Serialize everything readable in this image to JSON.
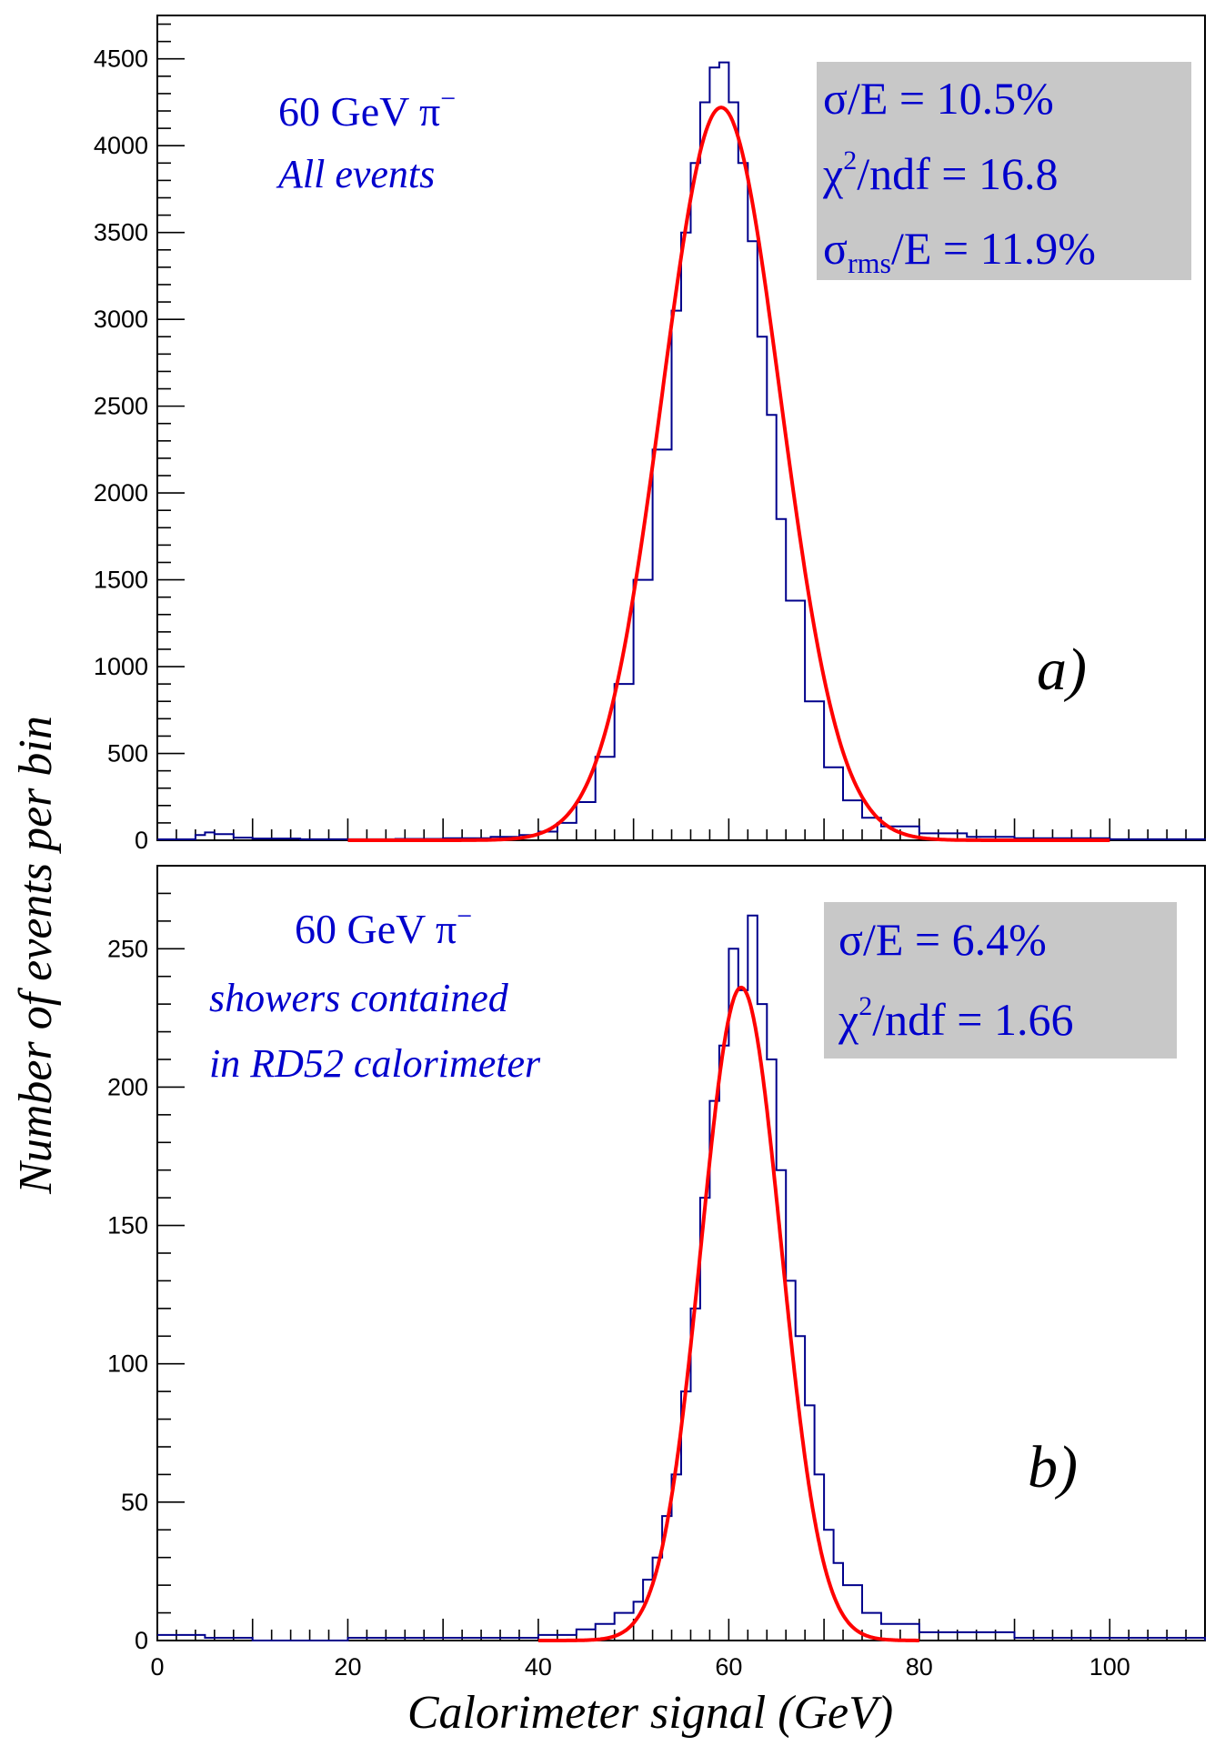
{
  "figure": {
    "ylabel": "Number of events per bin",
    "xlabel": "Calorimeter signal (GeV)"
  },
  "chart_data": [
    {
      "type": "histogram",
      "panel_label": "a)",
      "annotation": {
        "line1": "60 GeV π",
        "line1_sup": "−",
        "line2": "All events"
      },
      "stats": [
        {
          "text": "σ/E = 10.5%"
        },
        {
          "text_main": "χ",
          "text_sup": "2",
          "text_rest": "/ndf = 16.8"
        },
        {
          "text_main": "σ",
          "text_sub": "rms",
          "text_rest": "/E = 11.9%"
        }
      ],
      "stats_box_color": "#c8c8c8",
      "xlim": [
        0,
        110
      ],
      "ylim": [
        0,
        4750
      ],
      "yticks": [
        0,
        500,
        1000,
        1500,
        2000,
        2500,
        3000,
        3500,
        4000,
        4500
      ],
      "ytick_labels": [
        "0",
        "500",
        "1000",
        "1500",
        "2000",
        "2500",
        "3000",
        "3500",
        "4000",
        "4500"
      ],
      "series": [
        {
          "kind": "histogram",
          "color": "#00008b",
          "x": [
            0,
            4,
            5,
            6,
            8,
            10,
            15,
            20,
            25,
            30,
            35,
            38,
            40,
            42,
            44,
            46,
            48,
            50,
            52,
            54,
            55,
            56,
            57,
            58,
            59,
            60,
            61,
            62,
            63,
            64,
            65,
            66,
            68,
            70,
            72,
            74,
            76,
            80,
            85,
            90,
            100,
            110
          ],
          "y": [
            5,
            30,
            45,
            35,
            15,
            10,
            6,
            6,
            8,
            12,
            20,
            30,
            50,
            100,
            220,
            480,
            900,
            1500,
            2250,
            3050,
            3500,
            3900,
            4250,
            4450,
            4480,
            4250,
            3900,
            3450,
            2900,
            2450,
            1850,
            1380,
            800,
            420,
            230,
            130,
            80,
            40,
            20,
            12,
            6,
            4
          ]
        },
        {
          "kind": "fit",
          "color": "#ff0000",
          "mean": 59.2,
          "sigma": 6.22,
          "amplitude": 4220,
          "range": [
            20,
            100
          ]
        }
      ]
    },
    {
      "type": "histogram",
      "panel_label": "b)",
      "annotation": {
        "line1": "60 GeV π",
        "line1_sup": "−",
        "line2": "showers contained",
        "line3": "in RD52 calorimeter"
      },
      "stats": [
        {
          "text": "σ/E =  6.4%"
        },
        {
          "text_main": "χ",
          "text_sup": "2",
          "text_rest": "/ndf = 1.66"
        }
      ],
      "stats_box_color": "#c8c8c8",
      "xlim": [
        0,
        110
      ],
      "xticks": [
        0,
        20,
        40,
        60,
        80,
        100
      ],
      "xtick_labels": [
        "0",
        "20",
        "40",
        "60",
        "80",
        "100"
      ],
      "ylim": [
        0,
        280
      ],
      "yticks": [
        0,
        50,
        100,
        150,
        200,
        250
      ],
      "ytick_labels": [
        "0",
        "50",
        "100",
        "150",
        "200",
        "250"
      ],
      "series": [
        {
          "kind": "histogram",
          "color": "#00008b",
          "x": [
            0,
            5,
            10,
            20,
            30,
            40,
            44,
            46,
            48,
            50,
            51,
            52,
            53,
            54,
            55,
            56,
            57,
            58,
            59,
            60,
            61,
            62,
            63,
            64,
            65,
            66,
            67,
            68,
            69,
            70,
            71,
            72,
            74,
            76,
            80,
            90,
            100,
            110
          ],
          "y": [
            2,
            1,
            0,
            1,
            1,
            2,
            4,
            6,
            10,
            14,
            22,
            30,
            45,
            60,
            90,
            120,
            160,
            195,
            215,
            250,
            235,
            262,
            230,
            210,
            170,
            130,
            110,
            85,
            60,
            40,
            28,
            20,
            10,
            6,
            3,
            1,
            1,
            0
          ]
        },
        {
          "kind": "fit",
          "color": "#ff0000",
          "mean": 61.3,
          "sigma": 4.2,
          "amplitude": 236,
          "range": [
            40,
            80
          ]
        }
      ]
    }
  ]
}
